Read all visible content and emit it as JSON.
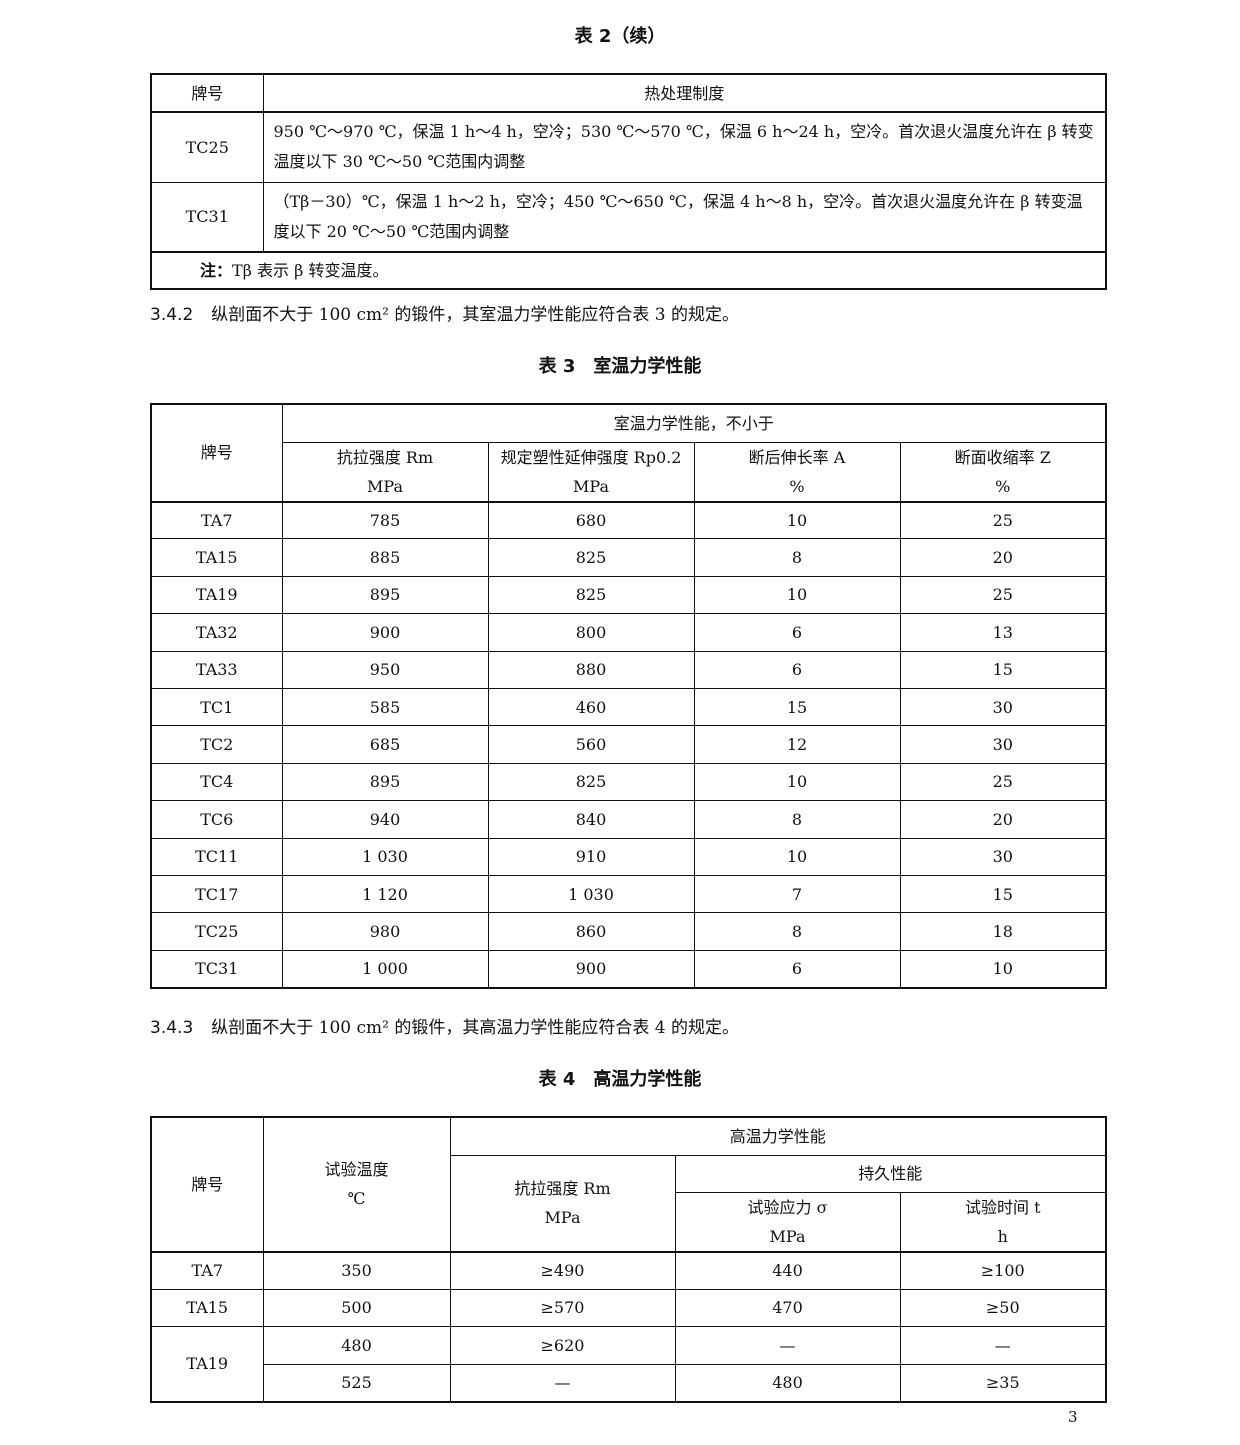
{
  "table2": {
    "title": "表 2（续）",
    "headers": [
      "牌号",
      "热处理制度"
    ],
    "rows": [
      {
        "grade": "TC25",
        "treatment": "950 ℃～970 ℃，保温 1 h～4 h，空冷；530 ℃～570 ℃，保温 6 h～24 h，空冷。首次退火温度允许在 β 转变温度以下 30 ℃～50 ℃范围内调整"
      },
      {
        "grade": "TC31",
        "treatment": "（Tβ－30）℃，保温 1 h～2 h，空冷；450 ℃～650 ℃，保温 4 h～8 h，空冷。首次退火温度允许在 β 转变温度以下 20 ℃～50 ℃范围内调整"
      }
    ],
    "note_label": "注：",
    "note_text": "Tβ 表示 β 转变温度。"
  },
  "para342": {
    "num": "3.4.2",
    "text": "纵剖面不大于 100 cm² 的锻件，其室温力学性能应符合表 3 的规定。"
  },
  "table3": {
    "title": "表 3　室温力学性能",
    "grade_header": "牌号",
    "group_header": "室温力学性能，不小于",
    "columns": [
      {
        "name": "抗拉强度 Rm",
        "unit": "MPa"
      },
      {
        "name": "规定塑性延伸强度 Rp0.2",
        "unit": "MPa"
      },
      {
        "name": "断后伸长率 A",
        "unit": "%"
      },
      {
        "name": "断面收缩率 Z",
        "unit": "%"
      }
    ],
    "rows": [
      [
        "TA7",
        "785",
        "680",
        "10",
        "25"
      ],
      [
        "TA15",
        "885",
        "825",
        "8",
        "20"
      ],
      [
        "TA19",
        "895",
        "825",
        "10",
        "25"
      ],
      [
        "TA32",
        "900",
        "800",
        "6",
        "13"
      ],
      [
        "TA33",
        "950",
        "880",
        "6",
        "15"
      ],
      [
        "TC1",
        "585",
        "460",
        "15",
        "30"
      ],
      [
        "TC2",
        "685",
        "560",
        "12",
        "30"
      ],
      [
        "TC4",
        "895",
        "825",
        "10",
        "25"
      ],
      [
        "TC6",
        "940",
        "840",
        "8",
        "20"
      ],
      [
        "TC11",
        "1 030",
        "910",
        "10",
        "30"
      ],
      [
        "TC17",
        "1 120",
        "1 030",
        "7",
        "15"
      ],
      [
        "TC25",
        "980",
        "860",
        "8",
        "18"
      ],
      [
        "TC31",
        "1 000",
        "900",
        "6",
        "10"
      ]
    ]
  },
  "para343": {
    "num": "3.4.3",
    "text": "纵剖面不大于 100 cm² 的锻件，其高温力学性能应符合表 4 的规定。"
  },
  "table4": {
    "title": "表 4　高温力学性能",
    "grade_header": "牌号",
    "temp_header": "试验温度",
    "temp_unit": "℃",
    "group_header": "高温力学性能",
    "tensile_header": "抗拉强度 Rm",
    "tensile_unit": "MPa",
    "endurance_header": "持久性能",
    "stress_header": "试验应力 σ",
    "stress_unit": "MPa",
    "time_header": "试验时间 t",
    "time_unit": "h",
    "rows": [
      [
        "TA7",
        "350",
        "≥490",
        "440",
        "≥100"
      ],
      [
        "TA15",
        "500",
        "≥570",
        "470",
        "≥50"
      ],
      [
        "TA19",
        "480",
        "≥620",
        "—",
        "—"
      ],
      [
        "",
        "525",
        "—",
        "480",
        "≥35"
      ]
    ]
  },
  "page_number": "3"
}
